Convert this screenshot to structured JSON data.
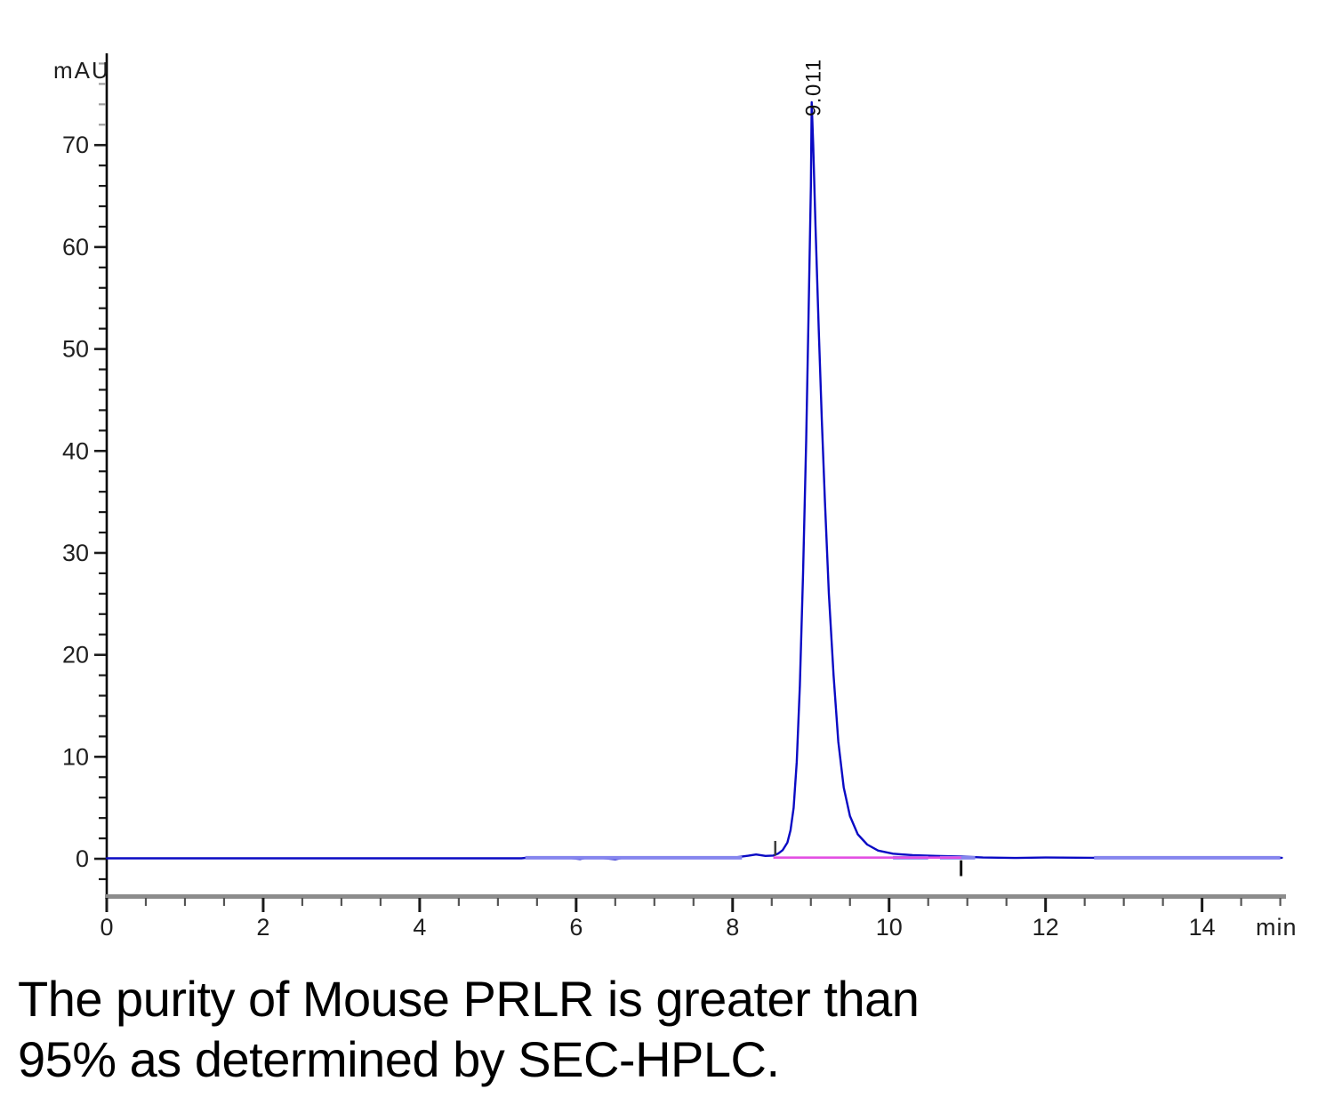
{
  "chart_data": {
    "type": "line",
    "title": "",
    "xlabel": "min",
    "ylabel": "mAU",
    "xlim": [
      0,
      15.05
    ],
    "ylim": [
      -3.66,
      79
    ],
    "grid": false,
    "legend": "none",
    "x_ticks": {
      "major_labels": [
        "0",
        "2",
        "4",
        "6",
        "8",
        "10",
        "12",
        "14"
      ],
      "major_values": [
        0,
        2,
        4,
        6,
        8,
        10,
        12,
        14
      ],
      "minor_step": 0.5,
      "minor_max": 15
    },
    "y_ticks": {
      "major_labels": [
        "0",
        "10",
        "20",
        "30",
        "40",
        "50",
        "60",
        "70"
      ],
      "major_values": [
        0,
        10,
        20,
        30,
        40,
        50,
        60,
        70
      ],
      "minor_step": 2,
      "minor_min": -2,
      "minor_max": 78,
      "gray_above": 70
    },
    "series": [
      {
        "name": "UV absorbance trace",
        "color": "#0a0ac4",
        "points": [
          [
            0,
            0.05
          ],
          [
            2.0,
            0.05
          ],
          [
            4.0,
            0.05
          ],
          [
            5.3,
            0.05
          ],
          [
            5.4,
            0.12
          ],
          [
            5.9,
            0.1
          ],
          [
            6.05,
            -0.02
          ],
          [
            6.15,
            0.12
          ],
          [
            6.35,
            0.06
          ],
          [
            6.5,
            -0.05
          ],
          [
            6.6,
            0.1
          ],
          [
            6.75,
            0.14
          ],
          [
            7.1,
            0.1
          ],
          [
            7.6,
            0.13
          ],
          [
            8.05,
            0.15
          ],
          [
            8.2,
            0.3
          ],
          [
            8.3,
            0.42
          ],
          [
            8.42,
            0.28
          ],
          [
            8.52,
            0.32
          ],
          [
            8.58,
            0.5
          ],
          [
            8.64,
            0.85
          ],
          [
            8.7,
            1.6
          ],
          [
            8.74,
            2.8
          ],
          [
            8.78,
            5.0
          ],
          [
            8.82,
            9.5
          ],
          [
            8.86,
            17
          ],
          [
            8.9,
            28
          ],
          [
            8.94,
            41
          ],
          [
            8.97,
            53
          ],
          [
            9.0,
            66
          ],
          [
            9.011,
            74.2
          ],
          [
            9.03,
            70
          ],
          [
            9.06,
            62
          ],
          [
            9.1,
            52
          ],
          [
            9.14,
            43
          ],
          [
            9.18,
            35
          ],
          [
            9.23,
            26
          ],
          [
            9.29,
            18
          ],
          [
            9.35,
            11.5
          ],
          [
            9.42,
            7
          ],
          [
            9.5,
            4.2
          ],
          [
            9.6,
            2.4
          ],
          [
            9.72,
            1.4
          ],
          [
            9.86,
            0.8
          ],
          [
            10.05,
            0.5
          ],
          [
            10.3,
            0.35
          ],
          [
            10.6,
            0.28
          ],
          [
            10.92,
            0.22
          ],
          [
            11.2,
            0.12
          ],
          [
            11.6,
            0.08
          ],
          [
            12.0,
            0.12
          ],
          [
            12.6,
            0.1
          ],
          [
            13.5,
            0.1
          ],
          [
            14.5,
            0.1
          ],
          [
            15.02,
            0.1
          ]
        ]
      }
    ],
    "noise_segments": {
      "color": "#8585ee",
      "level": 0.1,
      "ranges": [
        [
          5.35,
          8.12
        ],
        [
          10.05,
          10.5
        ],
        [
          10.65,
          11.1
        ],
        [
          12.62,
          15.0
        ]
      ]
    },
    "baseline": {
      "color": "#e34fe3",
      "x1": 8.52,
      "x2": 10.92,
      "level": 0.12
    },
    "integration_markers": [
      {
        "time": 8.545,
        "side": "above"
      },
      {
        "time": 10.92,
        "side": "below"
      }
    ],
    "peak": {
      "retention_time_label": "9.011",
      "retention_time": 9.011,
      "apex_mAU": 74.2
    },
    "colors": {
      "axis": "#000000",
      "x_axis_band": "#8c8c8c",
      "tick_dark": "#1a1a1a",
      "tick_gray": "#9e9e9e",
      "label": "#1f1f1f",
      "peak_label": "#111111",
      "marker_start": "#3c3c3c",
      "marker_end": "#111111"
    }
  },
  "caption": {
    "line1": "The purity of Mouse PRLR is greater than",
    "line2": "95% as determined by SEC-HPLC."
  }
}
